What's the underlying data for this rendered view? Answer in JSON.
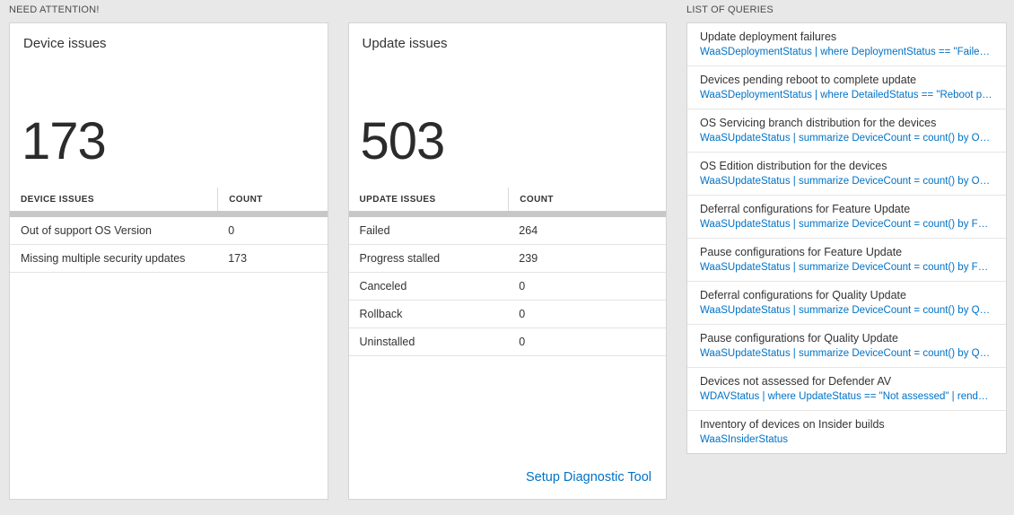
{
  "colors": {
    "accent_blue": "#0072c6",
    "background": "#e8e8e8",
    "text_dark": "#333333"
  },
  "need_attention": {
    "title": "NEED ATTENTION!"
  },
  "queries_section": {
    "title": "LIST OF QUERIES"
  },
  "device_card": {
    "title": "Device issues",
    "value": "173",
    "table": {
      "headers": {
        "label": "DEVICE ISSUES",
        "count": "COUNT"
      },
      "rows": [
        {
          "label": "Out of support OS Version",
          "count": "0"
        },
        {
          "label": "Missing multiple security updates",
          "count": "173"
        }
      ]
    }
  },
  "update_card": {
    "title": "Update issues",
    "value": "503",
    "table": {
      "headers": {
        "label": "UPDATE ISSUES",
        "count": "COUNT"
      },
      "rows": [
        {
          "label": "Failed",
          "count": "264"
        },
        {
          "label": "Progress stalled",
          "count": "239"
        },
        {
          "label": "Canceled",
          "count": "0"
        },
        {
          "label": "Rollback",
          "count": "0"
        },
        {
          "label": "Uninstalled",
          "count": "0"
        }
      ]
    },
    "footer_link": "Setup Diagnostic Tool"
  },
  "query_list": [
    {
      "title": "Update deployment failures",
      "query": "WaaSDeploymentStatus | where DeploymentStatus == \"Failed\" |..."
    },
    {
      "title": "Devices pending reboot to complete update",
      "query": "WaaSDeploymentStatus | where DetailedStatus == \"Reboot pend..."
    },
    {
      "title": "OS Servicing branch distribution for the devices",
      "query": "WaaSUpdateStatus | summarize DeviceCount = count() by OSSer..."
    },
    {
      "title": "OS Edition distribution for the devices",
      "query": "WaaSUpdateStatus | summarize DeviceCount = count() by OSEdit..."
    },
    {
      "title": "Deferral configurations for Feature Update",
      "query": "WaaSUpdateStatus | summarize DeviceCount = count() by Featur..."
    },
    {
      "title": "Pause configurations for Feature Update",
      "query": "WaaSUpdateStatus | summarize DeviceCount = count() by Featur..."
    },
    {
      "title": "Deferral configurations for Quality Update",
      "query": "WaaSUpdateStatus | summarize DeviceCount = count() by Qualit..."
    },
    {
      "title": "Pause configurations for Quality Update",
      "query": "WaaSUpdateStatus | summarize DeviceCount = count() by Qualit..."
    },
    {
      "title": "Devices not assessed for Defender AV",
      "query": "WDAVStatus | where UpdateStatus == \"Not assessed\" | render ta..."
    },
    {
      "title": "Inventory of devices on Insider builds",
      "query": "WaaSInsiderStatus"
    }
  ]
}
